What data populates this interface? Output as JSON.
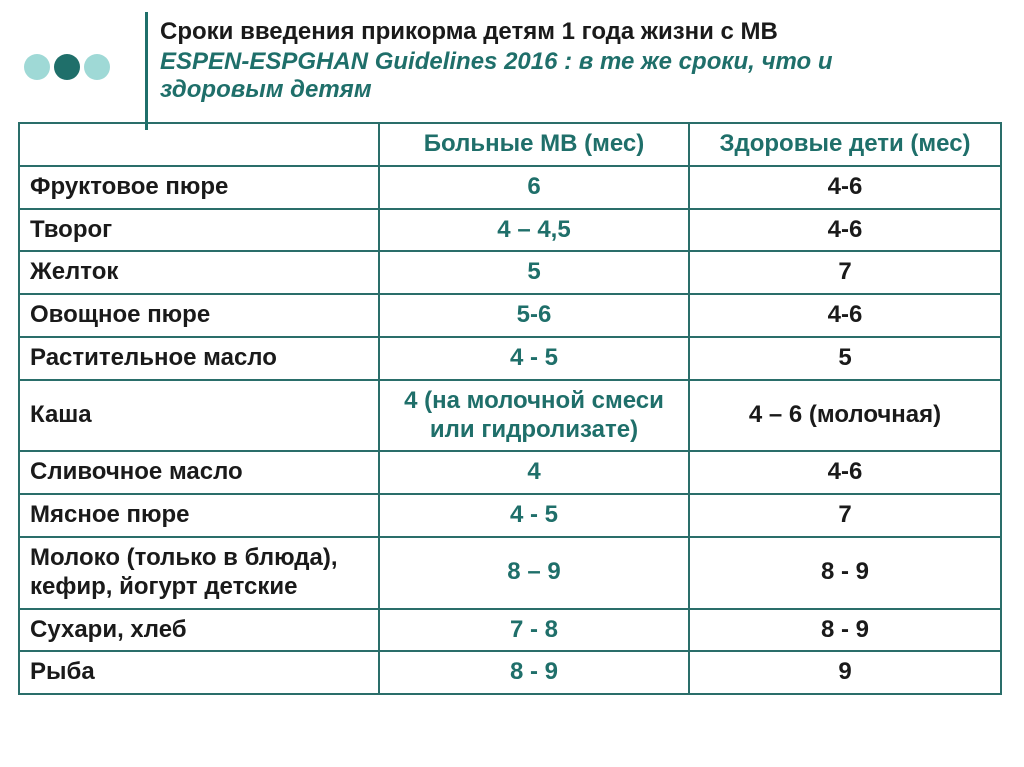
{
  "title": {
    "line1": "Сроки введения прикорма детям  1 года жизни с МВ",
    "line2": " ESPEN-ESPGHAN  Guidelines 2016 : в те же сроки, что и",
    "line3": "здоровым детям"
  },
  "dots": {
    "colors": [
      "#9fd9d6",
      "#1f6f6a",
      "#9fd9d6"
    ]
  },
  "table": {
    "header": {
      "blank": "",
      "mv": "Больные МВ (мес)",
      "healthy": "Здоровые дети (мес)"
    },
    "rows": [
      {
        "label": "Фруктовое пюре",
        "mv": "6",
        "healthy": "4-6"
      },
      {
        "label": "Творог",
        "mv": "4 – 4,5",
        "healthy": "4-6"
      },
      {
        "label": "Желток",
        "mv": "5",
        "healthy": "7"
      },
      {
        "label": "Овощное пюре",
        "mv": "5-6",
        "healthy": "4-6"
      },
      {
        "label": "Растительное масло",
        "mv": "4 - 5",
        "healthy": "5"
      },
      {
        "label": "Каша",
        "mv": "4 (на молочной смеси или гидролизате)",
        "healthy": "4 – 6 (молочная)"
      },
      {
        "label": "Сливочное масло",
        "mv": "4",
        "healthy": "4-6"
      },
      {
        "label": "Мясное пюре",
        "mv": "4 - 5",
        "healthy": "7"
      },
      {
        "label": "Молоко (только в блюда), кефир, йогурт детские",
        "mv": "8 – 9",
        "healthy": "8 - 9"
      },
      {
        "label": "Сухари, хлеб",
        "mv": "7 - 8",
        "healthy": "8 - 9"
      },
      {
        "label": "Рыба",
        "mv": "8 - 9",
        "healthy": "9"
      }
    ]
  },
  "colors": {
    "accent": "#1f6f6a",
    "border": "#2a6e6a",
    "text_dark": "#1a1a1a",
    "background": "#ffffff",
    "dot_light": "#9fd9d6"
  }
}
